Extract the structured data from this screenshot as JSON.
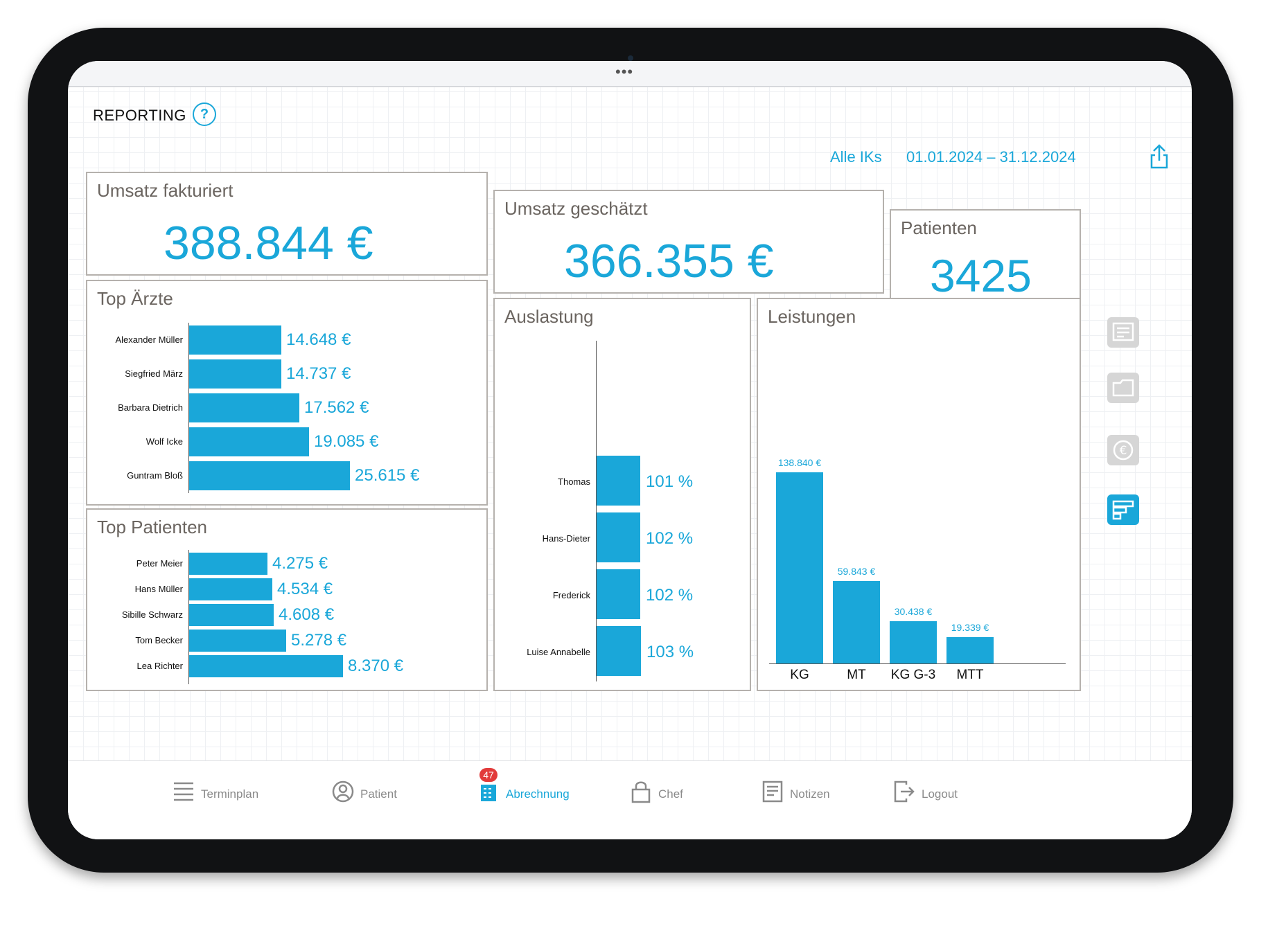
{
  "header": {
    "title": "REPORTING",
    "help_icon": "question-circle-icon",
    "filter_ik": "Alle IKs",
    "date_range": "01.01.2024 – 31.12.2024",
    "share_icon": "share-icon"
  },
  "kpis": {
    "umsatz_fakturiert": {
      "label": "Umsatz fakturiert",
      "value": "388.844 €"
    },
    "umsatz_geschaetzt": {
      "label": "Umsatz geschätzt",
      "value": "366.355 €"
    },
    "patienten": {
      "label": "Patienten",
      "value": "3425"
    }
  },
  "top_aerzte": {
    "title": "Top Ärzte",
    "rows": [
      {
        "name": "Alexander Müller",
        "value": 14648,
        "label": "14.648 €"
      },
      {
        "name": "Siegfried März",
        "value": 14737,
        "label": "14.737 €"
      },
      {
        "name": "Barbara Dietrich",
        "value": 17562,
        "label": "17.562 €"
      },
      {
        "name": "Wolf Icke",
        "value": 19085,
        "label": "19.085 €"
      },
      {
        "name": "Guntram Bloß",
        "value": 25615,
        "label": "25.615 €"
      }
    ]
  },
  "top_patienten": {
    "title": "Top Patienten",
    "rows": [
      {
        "name": "Peter Meier",
        "value": 4275,
        "label": "4.275 €"
      },
      {
        "name": "Hans Müller",
        "value": 4534,
        "label": "4.534 €"
      },
      {
        "name": "Sibille Schwarz",
        "value": 4608,
        "label": "4.608 €"
      },
      {
        "name": "Tom Becker",
        "value": 5278,
        "label": "5.278 €"
      },
      {
        "name": "Lea Richter",
        "value": 8370,
        "label": "8.370 €"
      }
    ]
  },
  "auslastung": {
    "title": "Auslastung",
    "rows": [
      {
        "name": "Thomas",
        "value": 101,
        "label": "101 %"
      },
      {
        "name": "Hans-Dieter",
        "value": 102,
        "label": "102 %"
      },
      {
        "name": "Frederick",
        "value": 102,
        "label": "102 %"
      },
      {
        "name": "Luise Annabelle",
        "value": 103,
        "label": "103 %"
      }
    ]
  },
  "leistungen": {
    "title": "Leistungen",
    "columns": [
      {
        "name": "KG",
        "value": 138840,
        "label": "138.840 €"
      },
      {
        "name": "MT",
        "value": 59843,
        "label": "59.843 €"
      },
      {
        "name": "KG G-3",
        "value": 30438,
        "label": "30.438 €"
      },
      {
        "name": "MTT",
        "value": 19339,
        "label": "19.339 €"
      }
    ]
  },
  "side_toolbar": [
    "notes-icon",
    "folder-icon",
    "euro-icon",
    "reporting-icon"
  ],
  "bottom_nav": [
    {
      "label": "Terminplan",
      "icon": "calendar-list-icon"
    },
    {
      "label": "Patient",
      "icon": "user-icon"
    },
    {
      "label": "Abrechnung",
      "icon": "billing-icon",
      "badge": "47",
      "active": true
    },
    {
      "label": "Chef",
      "icon": "lock-icon"
    },
    {
      "label": "Notizen",
      "icon": "notes-icon"
    },
    {
      "label": "Logout",
      "icon": "logout-icon"
    }
  ],
  "colors": {
    "accent": "#1aa7d9",
    "badge": "#e23b3b",
    "card_border": "#b5b1ad"
  }
}
